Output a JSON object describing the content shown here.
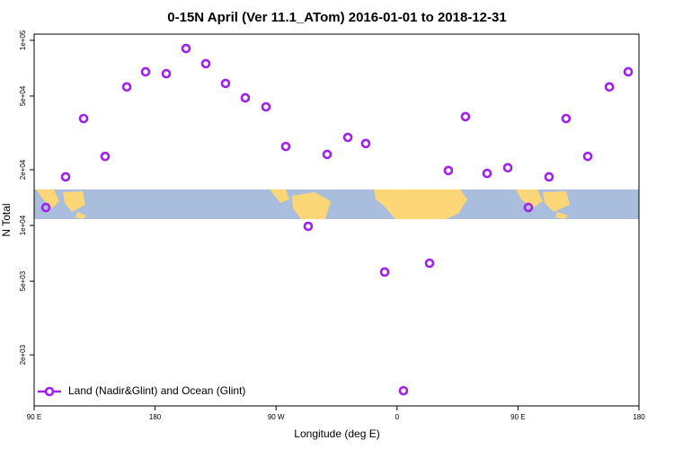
{
  "chart_data": {
    "type": "scatter",
    "title": "0-15N April (Ver 11.1_ATom)   2016-01-01 to 2018-12-31",
    "x_label": "Longitude (deg E)",
    "y_label": "N Total",
    "y_log_scale": true,
    "legend_corner": "lower left",
    "xlim": [
      90,
      540
    ],
    "ylim": [
      1060,
      108000
    ],
    "xticks": [
      {
        "value": 90,
        "label": "90 E"
      },
      180,
      {
        "value": 270,
        "label": "90 W"
      },
      {
        "value": 360,
        "label": "0"
      },
      {
        "value": 450,
        "label": "90 E"
      },
      {
        "value": 540,
        "label": "180"
      }
    ],
    "yticks": [
      {
        "value": 2000,
        "label": "2e+03"
      },
      {
        "value": 5000,
        "label": "5e+03"
      },
      {
        "value": 10000,
        "label": "1e+04"
      },
      {
        "value": 20000,
        "label": "2e+04"
      },
      {
        "value": 50000,
        "label": "5e+04"
      },
      {
        "value": 100000,
        "label": "1e+05"
      }
    ],
    "series": [
      {
        "name": "Land (Nadir&Glint) and Ocean (Glint)",
        "color": "#a020f0",
        "x": [
          98.7,
          113.4,
          126.8,
          142.8,
          158.9,
          172.9,
          188.3,
          203,
          217.7,
          232.4,
          247.1,
          262.5,
          277.2,
          293.9,
          308,
          323.4,
          336.7,
          350.8,
          364.8,
          384.2,
          398.2,
          410.9,
          427,
          442.4,
          457.7,
          473.1,
          485.8,
          501.9,
          518,
          532
        ],
        "values": [
          12500,
          18300,
          37800,
          23600,
          56000,
          67600,
          66000,
          90300,
          74800,
          58500,
          48900,
          43700,
          26700,
          9890,
          24200,
          29900,
          27700,
          5600,
          1280,
          6250,
          19800,
          38700,
          19100,
          20500,
          12500,
          18300,
          37800,
          23600,
          56000,
          67600
        ]
      }
    ]
  }
}
